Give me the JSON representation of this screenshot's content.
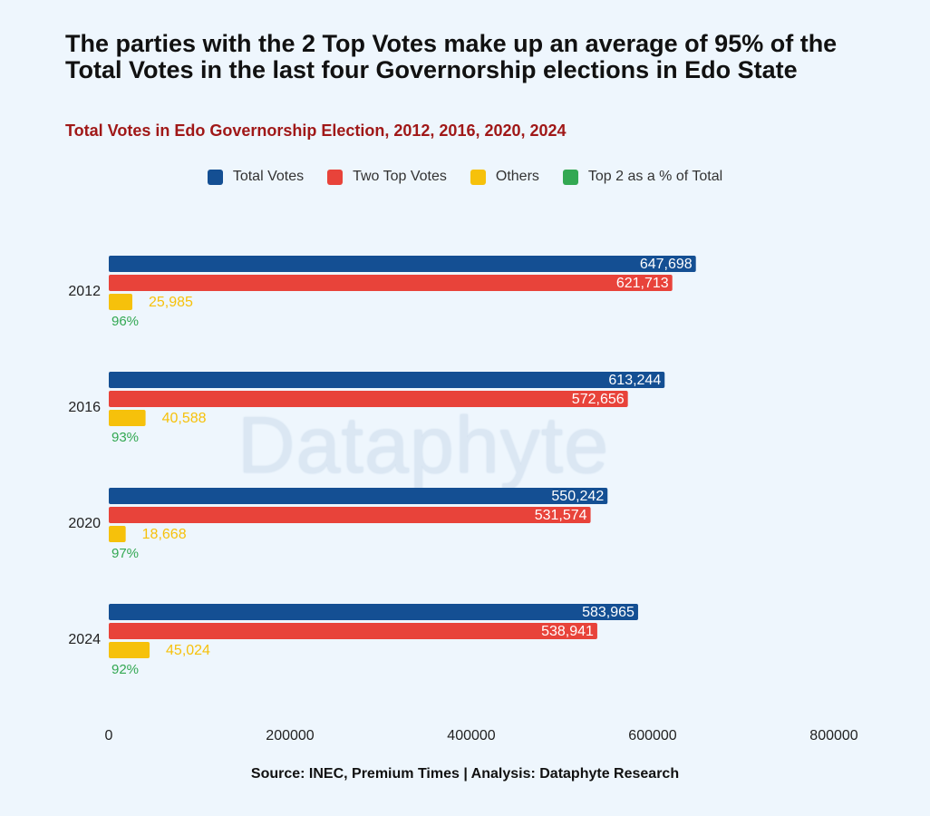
{
  "header": {
    "title": "The parties with the 2 Top Votes make up an average of 95% of the Total Votes in the last four Governorship elections in Edo State",
    "subtitle": "Total Votes in Edo Governorship Election, 2012, 2016, 2020, 2024"
  },
  "legend": [
    {
      "label": "Total Votes",
      "color": "#144f93"
    },
    {
      "label": "Two Top Votes",
      "color": "#e8433a"
    },
    {
      "label": "Others",
      "color": "#f6c10b"
    },
    {
      "label": "Top 2 as a % of Total",
      "color": "#33a852"
    }
  ],
  "watermark": "Dataphyte",
  "source": "Source: INEC, Premium Times | Analysis: Dataphyte Research",
  "chart_data": {
    "type": "bar",
    "orientation": "horizontal",
    "categories": [
      "2012",
      "2016",
      "2020",
      "2024"
    ],
    "series": [
      {
        "name": "Total Votes",
        "color": "#144f93",
        "values": [
          647698,
          613244,
          550242,
          583965
        ],
        "labels": [
          "647,698",
          "613,244",
          "550,242",
          "583,965"
        ]
      },
      {
        "name": "Two Top Votes",
        "color": "#e8433a",
        "values": [
          621713,
          572656,
          531574,
          538941
        ],
        "labels": [
          "621,713",
          "572,656",
          "531,574",
          "538,941"
        ]
      },
      {
        "name": "Others",
        "color": "#f6c10b",
        "values": [
          25985,
          40588,
          18668,
          45024
        ],
        "labels": [
          "25,985",
          "40,588",
          "18,668",
          "45,024"
        ]
      },
      {
        "name": "Top 2 as a % of Total",
        "color": "#33a852",
        "values": [
          96,
          93,
          97,
          92
        ],
        "labels": [
          "96%",
          "93%",
          "97%",
          "92%"
        ]
      }
    ],
    "xlim": [
      0,
      800000
    ],
    "xticks": [
      "0",
      "200000",
      "400000",
      "600000",
      "800000"
    ],
    "grid": false,
    "legend_position": "top"
  }
}
